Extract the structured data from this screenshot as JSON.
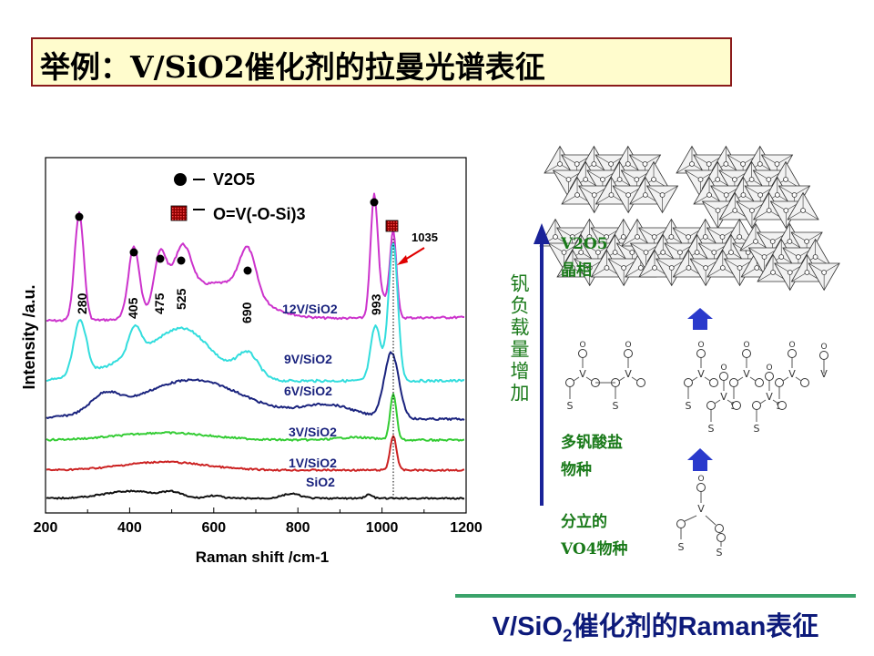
{
  "title": "举例：V/SiO2催化剂的拉曼光谱表征",
  "chart_data": {
    "type": "line",
    "xlabel": "Raman shift /cm-1",
    "ylabel": "Intensity /a.u.",
    "xlim": [
      200,
      1200
    ],
    "x_ticks": [
      "200",
      "400",
      "600",
      "800",
      "1000",
      "1200"
    ],
    "legend": [
      {
        "marker": "circle",
        "label": "V2O5"
      },
      {
        "marker": "square",
        "label": "O=V(-O-Si)3"
      }
    ],
    "peak_labels": [
      "280",
      "405",
      "475",
      "525",
      "690",
      "993"
    ],
    "annotation": "1035",
    "series": [
      {
        "name": "12V/SiO2",
        "color": "#cc33cc",
        "peaks_cm": [
          280,
          405,
          475,
          525,
          690,
          993,
          1035
        ]
      },
      {
        "name": "9V/SiO2",
        "color": "#33dddd",
        "peaks_cm": [
          280,
          405,
          500,
          690,
          993,
          1035
        ]
      },
      {
        "name": "6V/SiO2",
        "color": "#1a237e",
        "peaks_cm": [
          350,
          560,
          1035
        ]
      },
      {
        "name": "3V/SiO2",
        "color": "#33cc33",
        "peaks_cm": [
          480,
          1035
        ]
      },
      {
        "name": "1V/SiO2",
        "color": "#cc2222",
        "peaks_cm": [
          480,
          1035
        ]
      },
      {
        "name": "SiO2",
        "color": "#111111",
        "peaks_cm": [
          450,
          610,
          800,
          980
        ]
      }
    ]
  },
  "diagram": {
    "arrow_label": "钒负载量增加",
    "stages": [
      {
        "line1": "V2O5",
        "line2": "晶相"
      },
      {
        "line1": "多钒酸盐",
        "line2": "物种"
      },
      {
        "line1": "分立的",
        "line2": "VO4物种"
      }
    ],
    "atoms": {
      "oxygen": "O",
      "vanadium": "V",
      "silicon": "S"
    }
  },
  "caption": {
    "prefix": "V/SiO",
    "sub": "2",
    "suffix": "催化剂的Raman表征"
  },
  "colors": {
    "title_border": "#8b1a1a",
    "title_bg": "#fffccd",
    "accent_green": "#3aa36a",
    "label_green": "#1a7a1a",
    "label_blue": "#1a237e",
    "arrow_blue": "#1a2399"
  }
}
